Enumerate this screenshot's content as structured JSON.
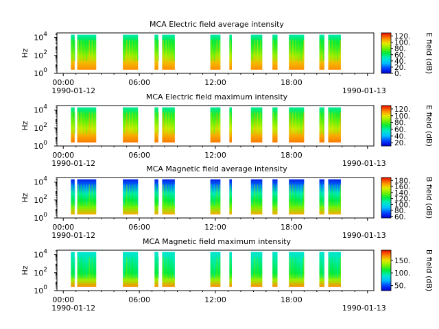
{
  "chart_data": [
    {
      "type": "heatmap",
      "title": "MCA  Electric field average intensity",
      "ylabel": "Hz",
      "colorbar_label": "E field (dB)",
      "colorbar_ticks": [
        "0.",
        "20.",
        "40.",
        "60.",
        "80.",
        "100.",
        "120."
      ],
      "colorbar_range": [
        0,
        130
      ],
      "colormap": "rainbow-low-blue",
      "y_ticks": [
        {
          "base": "10",
          "exp": "0"
        },
        {
          "base": "10",
          "exp": "2"
        },
        {
          "base": "10",
          "exp": "4"
        }
      ],
      "ylim_log10": [
        0,
        4.5
      ],
      "x_ticks": [
        "00:00",
        "06:00",
        "12:00",
        "18:00"
      ],
      "x_start_label": "1990-01-12",
      "x_end_label": "1990-01-13",
      "xlim_hours": [
        -0.5,
        24.5
      ],
      "data_low_log10": 0.4,
      "data_high_log10": 4.3,
      "dominant_level": 0.62
    },
    {
      "type": "heatmap",
      "title": "MCA  Electric field maximum intensity",
      "ylabel": "Hz",
      "colorbar_label": "E field (dB)",
      "colorbar_ticks": [
        "20.",
        "40.",
        "60.",
        "80.",
        "100.",
        "120."
      ],
      "colorbar_range": [
        10,
        130
      ],
      "colormap": "rainbow-low-blue",
      "y_ticks": [
        {
          "base": "10",
          "exp": "0"
        },
        {
          "base": "10",
          "exp": "2"
        },
        {
          "base": "10",
          "exp": "4"
        }
      ],
      "ylim_log10": [
        0,
        4.5
      ],
      "x_ticks": [
        "00:00",
        "06:00",
        "12:00",
        "18:00"
      ],
      "x_start_label": "1990-01-12",
      "x_end_label": "1990-01-13",
      "xlim_hours": [
        -0.5,
        24.5
      ],
      "data_low_log10": 0.4,
      "data_high_log10": 4.3,
      "dominant_level": 0.62
    },
    {
      "type": "heatmap",
      "title": "MCA  Magnetic field average intensity",
      "ylabel": "Hz",
      "colorbar_label": "B field (dB)",
      "colorbar_ticks": [
        "60.",
        "80.",
        "100.",
        "120.",
        "140.",
        "160.",
        "180."
      ],
      "colorbar_range": [
        55,
        190
      ],
      "colormap": "rainbow-low-blue",
      "y_ticks": [
        {
          "base": "10",
          "exp": "0"
        },
        {
          "base": "10",
          "exp": "2"
        },
        {
          "base": "10",
          "exp": "4"
        }
      ],
      "ylim_log10": [
        0,
        4.5
      ],
      "x_ticks": [
        "00:00",
        "06:00",
        "12:00",
        "18:00"
      ],
      "x_start_label": "1990-01-12",
      "x_end_label": "1990-01-13",
      "xlim_hours": [
        -0.5,
        24.5
      ],
      "data_low_log10": 0.4,
      "data_high_log10": 4.3,
      "dominant_level": 0.48
    },
    {
      "type": "heatmap",
      "title": "MCA  Magnetic field maximum intensity",
      "ylabel": "Hz",
      "colorbar_label": "B field (dB)",
      "colorbar_ticks": [
        "50.",
        "100.",
        "150."
      ],
      "colorbar_range": [
        30,
        190
      ],
      "colormap": "rainbow-low-blue",
      "y_ticks": [
        {
          "base": "10",
          "exp": "0"
        },
        {
          "base": "10",
          "exp": "2"
        },
        {
          "base": "10",
          "exp": "4"
        }
      ],
      "ylim_log10": [
        0,
        4.5
      ],
      "x_ticks": [
        "00:00",
        "06:00",
        "12:00",
        "18:00"
      ],
      "x_start_label": "1990-01-12",
      "x_end_label": "1990-01-13",
      "xlim_hours": [
        -0.5,
        24.5
      ],
      "data_low_log10": 0.4,
      "data_high_log10": 4.3,
      "dominant_level": 0.5
    }
  ],
  "data_segments_hours": [
    [
      0.6,
      0.9
    ],
    [
      1.1,
      2.6
    ],
    [
      4.7,
      5.9
    ],
    [
      7.2,
      7.5
    ],
    [
      7.8,
      8.8
    ],
    [
      11.6,
      12.4
    ],
    [
      13.1,
      13.3
    ],
    [
      14.8,
      15.7
    ],
    [
      16.5,
      16.9
    ],
    [
      17.8,
      19.0
    ],
    [
      20.2,
      20.6
    ],
    [
      20.9,
      21.9
    ]
  ]
}
